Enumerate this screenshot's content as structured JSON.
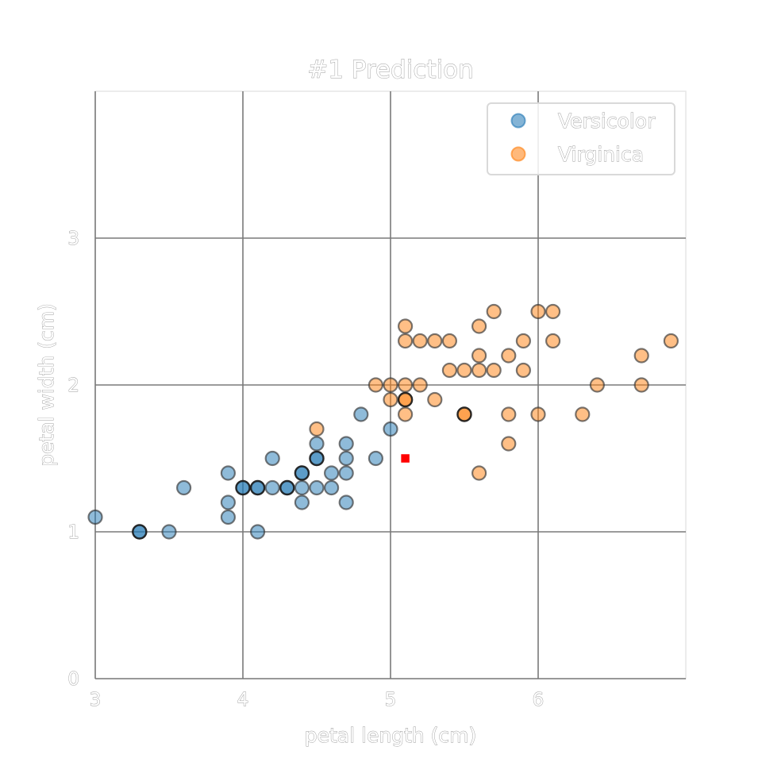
{
  "chart_data": {
    "type": "scatter",
    "title": "#1 Prediction",
    "xlabel": "petal length (cm)",
    "ylabel": "petal width (cm)",
    "xlim": [
      3,
      7
    ],
    "ylim": [
      0,
      4
    ],
    "xticks": [
      3,
      4,
      5,
      6
    ],
    "yticks": [
      0,
      1,
      2,
      3
    ],
    "grid": true,
    "legend_position": "top-right",
    "series": [
      {
        "name": "Versicolor",
        "color": "#1f77b4",
        "points": [
          [
            3.0,
            1.1
          ],
          [
            3.3,
            1.0
          ],
          [
            3.5,
            1.0
          ],
          [
            3.6,
            1.3
          ],
          [
            3.9,
            1.4
          ],
          [
            3.9,
            1.2
          ],
          [
            3.9,
            1.1
          ],
          [
            4.0,
            1.3
          ],
          [
            4.1,
            1.3
          ],
          [
            4.1,
            1.0
          ],
          [
            4.2,
            1.5
          ],
          [
            4.2,
            1.3
          ],
          [
            4.3,
            1.3
          ],
          [
            4.4,
            1.4
          ],
          [
            4.4,
            1.3
          ],
          [
            4.4,
            1.2
          ],
          [
            4.5,
            1.6
          ],
          [
            4.5,
            1.5
          ],
          [
            4.5,
            1.3
          ],
          [
            4.6,
            1.4
          ],
          [
            4.6,
            1.3
          ],
          [
            4.7,
            1.6
          ],
          [
            4.7,
            1.5
          ],
          [
            4.7,
            1.4
          ],
          [
            4.7,
            1.2
          ],
          [
            4.8,
            1.8
          ],
          [
            4.9,
            1.5
          ],
          [
            5.0,
            1.7
          ]
        ],
        "highlighted": [
          [
            3.3,
            1.0
          ],
          [
            4.0,
            1.3
          ],
          [
            4.1,
            1.3
          ],
          [
            4.3,
            1.3
          ],
          [
            4.4,
            1.4
          ],
          [
            4.5,
            1.5
          ]
        ]
      },
      {
        "name": "Virginica",
        "color": "#ff7f0e",
        "points": [
          [
            4.5,
            1.7
          ],
          [
            4.9,
            2.0
          ],
          [
            5.0,
            2.0
          ],
          [
            5.0,
            1.9
          ],
          [
            5.1,
            2.4
          ],
          [
            5.1,
            2.3
          ],
          [
            5.1,
            2.0
          ],
          [
            5.1,
            1.9
          ],
          [
            5.1,
            1.8
          ],
          [
            5.2,
            2.3
          ],
          [
            5.2,
            2.0
          ],
          [
            5.3,
            2.3
          ],
          [
            5.3,
            1.9
          ],
          [
            5.4,
            2.3
          ],
          [
            5.4,
            2.1
          ],
          [
            5.5,
            2.1
          ],
          [
            5.5,
            1.8
          ],
          [
            5.6,
            2.4
          ],
          [
            5.6,
            2.2
          ],
          [
            5.6,
            2.1
          ],
          [
            5.6,
            1.4
          ],
          [
            5.7,
            2.5
          ],
          [
            5.7,
            2.1
          ],
          [
            5.8,
            2.2
          ],
          [
            5.8,
            1.8
          ],
          [
            5.8,
            1.6
          ],
          [
            5.9,
            2.3
          ],
          [
            5.9,
            2.1
          ],
          [
            6.0,
            2.5
          ],
          [
            6.0,
            1.8
          ],
          [
            6.1,
            2.5
          ],
          [
            6.1,
            2.3
          ],
          [
            6.3,
            1.8
          ],
          [
            6.4,
            2.0
          ],
          [
            6.7,
            2.2
          ],
          [
            6.7,
            2.0
          ],
          [
            6.9,
            2.3
          ]
        ],
        "highlighted": [
          [
            5.1,
            1.9
          ],
          [
            5.5,
            1.8
          ]
        ]
      }
    ],
    "prediction_point": {
      "x": 5.1,
      "y": 1.5,
      "color": "#ff0000"
    }
  }
}
